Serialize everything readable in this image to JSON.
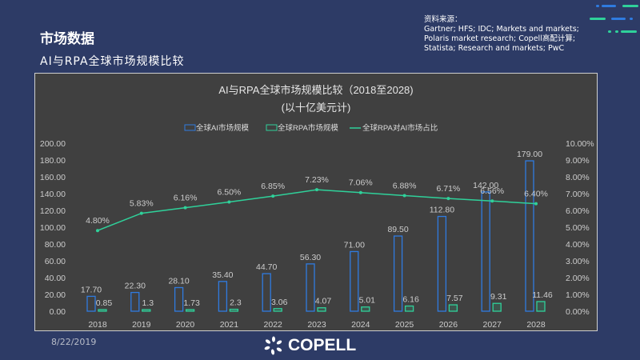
{
  "page": {
    "title": "市场数据",
    "subtitle": "AI与RPA全球市场规模比较",
    "date": "8/22/2019",
    "logo": "COPELL"
  },
  "source": {
    "label": "资料来源：",
    "lines": [
      "Gartner; HFS; IDC; Markets and markets;",
      "Polaris market research; Copell高配计算;",
      "Statista; Research and markets; PwC"
    ]
  },
  "colors": {
    "background": "#2d3b66",
    "chart_bg": "#404040",
    "ai": "#2f7be0",
    "rpa": "#2fd19a",
    "line": "#2fd19a"
  },
  "chart_data": {
    "type": "bar+line",
    "title": "AI与RPA全球市场规模比较（2018至2028)",
    "subtitle": "(以十亿美元计)",
    "categories": [
      "2018",
      "2019",
      "2020",
      "2021",
      "2022",
      "2023",
      "2024",
      "2025",
      "2026",
      "2027",
      "2028"
    ],
    "series": [
      {
        "name": "全球AI市场规模",
        "type": "bar",
        "axis": "left",
        "values": [
          17.7,
          22.3,
          28.1,
          35.4,
          44.7,
          56.3,
          71.0,
          89.5,
          112.8,
          142.0,
          179.0
        ],
        "labels": [
          "17.70",
          "22.30",
          "28.10",
          "35.40",
          "44.70",
          "56.30",
          "71.00",
          "89.50",
          "112.80",
          "142.00",
          "179.00"
        ]
      },
      {
        "name": "全球RPA市场规模",
        "type": "bar",
        "axis": "left",
        "values": [
          0.85,
          1.3,
          1.73,
          2.3,
          3.06,
          4.07,
          5.01,
          6.16,
          7.57,
          9.31,
          11.46
        ],
        "labels": [
          "0.85",
          "1.3",
          "1.73",
          "2.3",
          "3.06",
          "4.07",
          "5.01",
          "6.16",
          "7.57",
          "9.31",
          "11.46"
        ]
      },
      {
        "name": "全球RPA对AI市场占比",
        "type": "line",
        "axis": "right",
        "values": [
          4.8,
          5.83,
          6.16,
          6.5,
          6.85,
          7.23,
          7.06,
          6.88,
          6.71,
          6.56,
          6.4
        ],
        "labels": [
          "4.80%",
          "5.83%",
          "6.16%",
          "6.50%",
          "6.85%",
          "7.23%",
          "7.06%",
          "6.88%",
          "6.71%",
          "6.56%",
          "6.40%"
        ]
      }
    ],
    "y_left": {
      "range": [
        0,
        200
      ],
      "ticks": [
        "0.00",
        "20.00",
        "40.00",
        "60.00",
        "80.00",
        "100.00",
        "120.00",
        "140.00",
        "160.00",
        "180.00",
        "200.00"
      ]
    },
    "y_right": {
      "range": [
        0,
        10
      ],
      "ticks": [
        "0.00%",
        "1.00%",
        "2.00%",
        "3.00%",
        "4.00%",
        "5.00%",
        "6.00%",
        "7.00%",
        "8.00%",
        "9.00%",
        "10.00%"
      ]
    },
    "legend": "top",
    "grid": false
  }
}
